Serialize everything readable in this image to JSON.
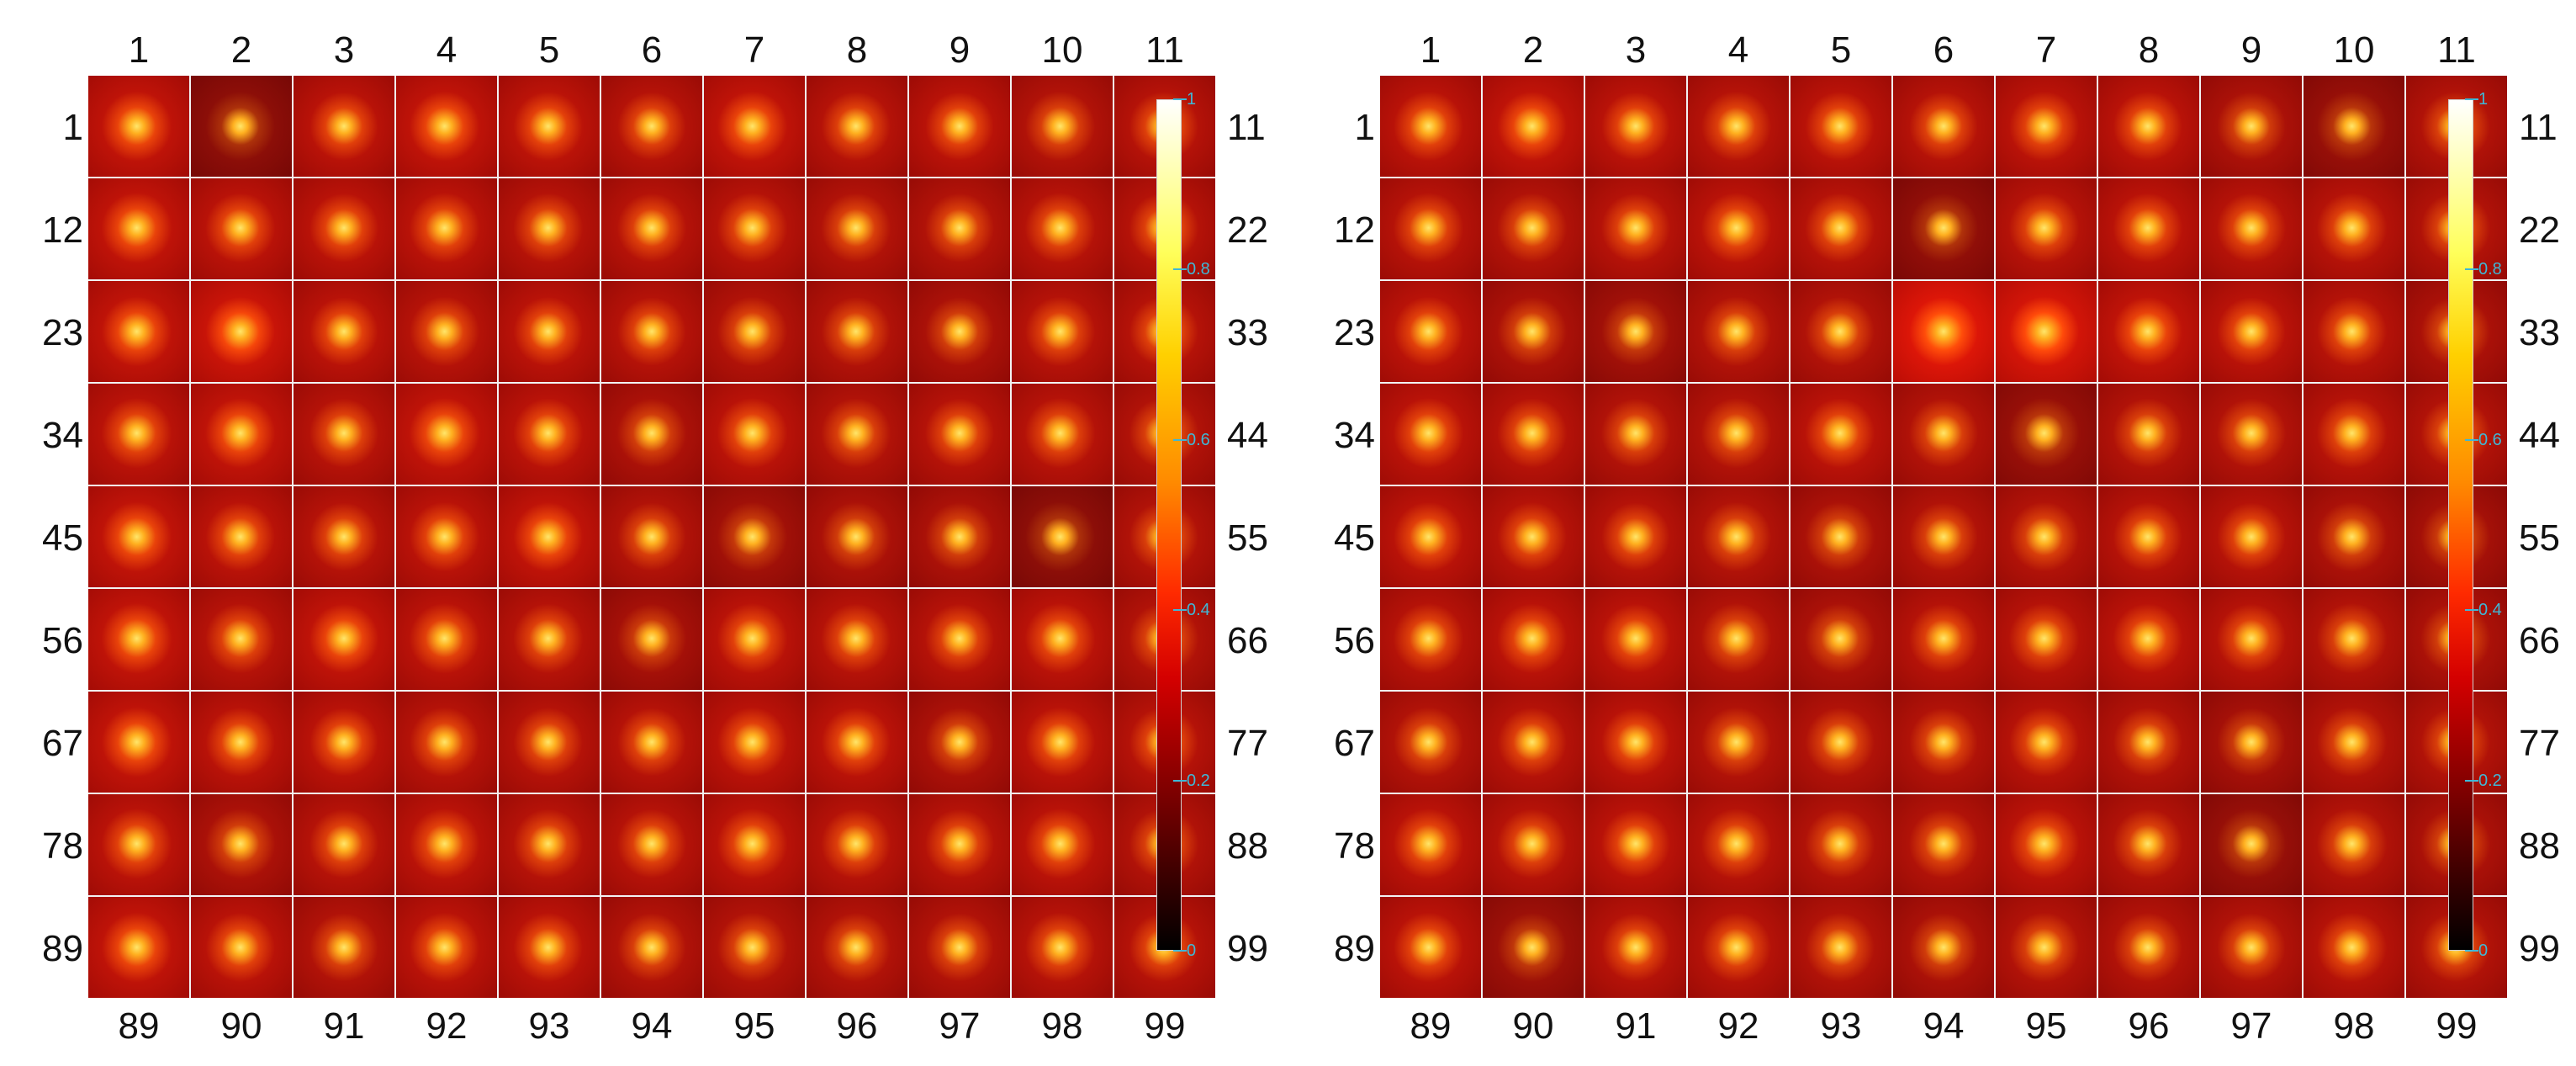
{
  "panels": [
    {
      "id": "left",
      "top_labels": [
        "1",
        "2",
        "3",
        "4",
        "5",
        "6",
        "7",
        "8",
        "9",
        "10",
        "11"
      ],
      "bottom_labels": [
        "89",
        "90",
        "91",
        "92",
        "93",
        "94",
        "95",
        "96",
        "97",
        "98",
        "99"
      ],
      "left_labels": [
        "1",
        "12",
        "23",
        "34",
        "45",
        "56",
        "67",
        "78",
        "89"
      ],
      "right_labels": [
        "11",
        "22",
        "33",
        "44",
        "55",
        "66",
        "77",
        "88",
        "99"
      ],
      "colorbar_ticks": [
        "1",
        "0.8",
        "0.6",
        "0.4",
        "0.2",
        "0"
      ],
      "cell_bg_brightness": [
        [
          0.95,
          0.7,
          0.92,
          0.95,
          0.93,
          0.9,
          0.95,
          0.9,
          0.92,
          0.88,
          0.9
        ],
        [
          0.95,
          0.92,
          0.92,
          0.92,
          0.9,
          0.9,
          0.9,
          0.88,
          0.88,
          0.9,
          0.9
        ],
        [
          0.95,
          1.0,
          0.92,
          0.9,
          0.92,
          0.9,
          0.88,
          0.88,
          0.85,
          0.9,
          0.9
        ],
        [
          0.92,
          0.95,
          0.9,
          0.95,
          0.92,
          0.85,
          0.92,
          0.88,
          0.9,
          0.9,
          0.88
        ],
        [
          0.95,
          0.92,
          0.9,
          0.92,
          0.95,
          0.88,
          0.8,
          0.85,
          0.85,
          0.7,
          0.88
        ],
        [
          0.95,
          0.9,
          0.95,
          0.92,
          0.9,
          0.82,
          0.92,
          0.9,
          0.9,
          0.92,
          0.88
        ],
        [
          0.95,
          0.92,
          0.92,
          0.9,
          0.9,
          0.9,
          0.92,
          0.92,
          0.85,
          0.92,
          0.9
        ],
        [
          0.92,
          0.85,
          0.9,
          0.92,
          0.9,
          0.9,
          0.92,
          0.9,
          0.9,
          0.92,
          0.88
        ],
        [
          0.95,
          0.92,
          0.88,
          0.92,
          0.92,
          0.88,
          0.88,
          0.88,
          0.88,
          0.9,
          0.9
        ]
      ]
    },
    {
      "id": "right",
      "top_labels": [
        "1",
        "2",
        "3",
        "4",
        "5",
        "6",
        "7",
        "8",
        "9",
        "10",
        "11"
      ],
      "bottom_labels": [
        "89",
        "90",
        "91",
        "92",
        "93",
        "94",
        "95",
        "96",
        "97",
        "98",
        "99"
      ],
      "left_labels": [
        "1",
        "12",
        "23",
        "34",
        "45",
        "56",
        "67",
        "78",
        "89"
      ],
      "right_labels": [
        "11",
        "22",
        "33",
        "44",
        "55",
        "66",
        "77",
        "88",
        "99"
      ],
      "colorbar_ticks": [
        "1",
        "0.8",
        "0.6",
        "0.4",
        "0.2",
        "0"
      ],
      "cell_bg_brightness": [
        [
          0.92,
          0.95,
          0.92,
          0.9,
          0.92,
          0.9,
          0.92,
          0.92,
          0.85,
          0.75,
          0.88
        ],
        [
          0.9,
          0.88,
          0.9,
          0.92,
          0.9,
          0.72,
          0.9,
          0.92,
          0.9,
          0.9,
          0.88
        ],
        [
          0.92,
          0.85,
          0.8,
          0.88,
          0.88,
          1.1,
          1.05,
          0.95,
          0.92,
          0.9,
          0.85
        ],
        [
          0.92,
          0.9,
          0.88,
          0.88,
          0.92,
          0.88,
          0.75,
          0.88,
          0.88,
          0.9,
          0.88
        ],
        [
          0.92,
          0.9,
          0.9,
          0.88,
          0.85,
          0.88,
          0.88,
          0.9,
          0.9,
          0.85,
          0.82
        ],
        [
          0.9,
          0.92,
          0.92,
          0.88,
          0.85,
          0.9,
          0.9,
          0.92,
          0.9,
          0.88,
          0.85
        ],
        [
          0.88,
          0.9,
          0.92,
          0.88,
          0.88,
          0.88,
          0.9,
          0.88,
          0.82,
          0.88,
          0.88
        ],
        [
          0.92,
          0.9,
          0.92,
          0.9,
          0.88,
          0.88,
          0.92,
          0.88,
          0.75,
          0.88,
          0.85
        ],
        [
          0.92,
          0.78,
          0.9,
          0.9,
          0.88,
          0.85,
          0.88,
          0.88,
          0.88,
          0.9,
          0.88
        ]
      ]
    }
  ]
}
